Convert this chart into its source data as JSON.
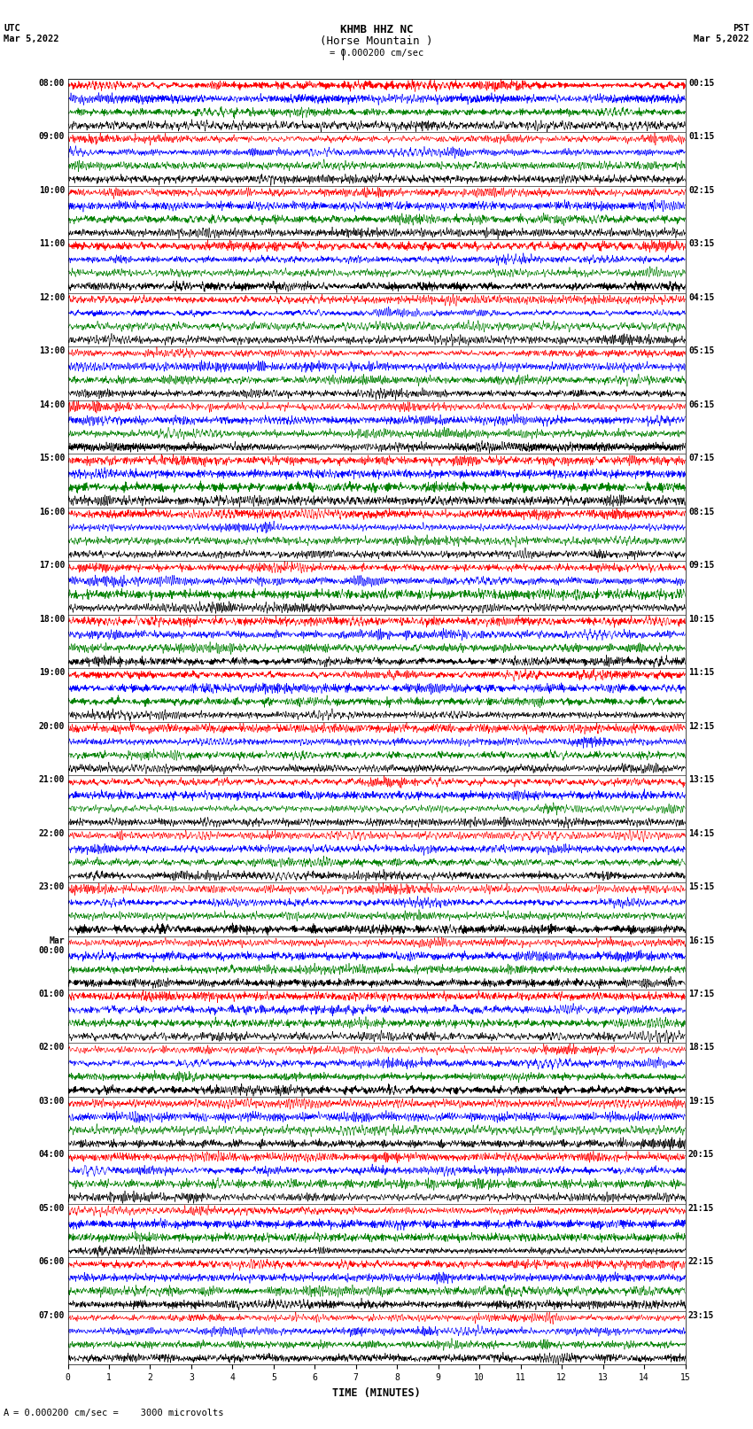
{
  "title_line1": "KHMB HHZ NC",
  "title_line2": "(Horse Mountain )",
  "scale_label": "= 0.000200 cm/sec",
  "left_label": "UTC\nMar 5,2022",
  "right_label": "PST\nMar 5,2022",
  "bottom_label": "TIME (MINUTES)",
  "scale_note": "= 0.000200 cm/sec =    3000 microvolts",
  "left_times": [
    "08:00",
    "09:00",
    "10:00",
    "11:00",
    "12:00",
    "13:00",
    "14:00",
    "15:00",
    "16:00",
    "17:00",
    "18:00",
    "19:00",
    "20:00",
    "21:00",
    "22:00",
    "23:00",
    "Mar\n00:00",
    "01:00",
    "02:00",
    "03:00",
    "04:00",
    "05:00",
    "06:00",
    "07:00"
  ],
  "right_times": [
    "00:15",
    "01:15",
    "02:15",
    "03:15",
    "04:15",
    "05:15",
    "06:15",
    "07:15",
    "08:15",
    "09:15",
    "10:15",
    "11:15",
    "12:15",
    "13:15",
    "14:15",
    "15:15",
    "16:15",
    "17:15",
    "18:15",
    "19:15",
    "20:15",
    "21:15",
    "22:15",
    "23:15"
  ],
  "n_rows": 24,
  "n_cols": 4,
  "row_colors": [
    "red",
    "blue",
    "green",
    "black"
  ],
  "x_min": 0,
  "x_max": 15,
  "x_ticks": [
    0,
    1,
    2,
    3,
    4,
    5,
    6,
    7,
    8,
    9,
    10,
    11,
    12,
    13,
    14,
    15
  ],
  "fig_width": 8.5,
  "fig_height": 16.13,
  "dpi": 100,
  "background_color": "white",
  "title_fontsize": 9,
  "label_fontsize": 7.5,
  "tick_fontsize": 7,
  "time_fontsize": 7.5
}
